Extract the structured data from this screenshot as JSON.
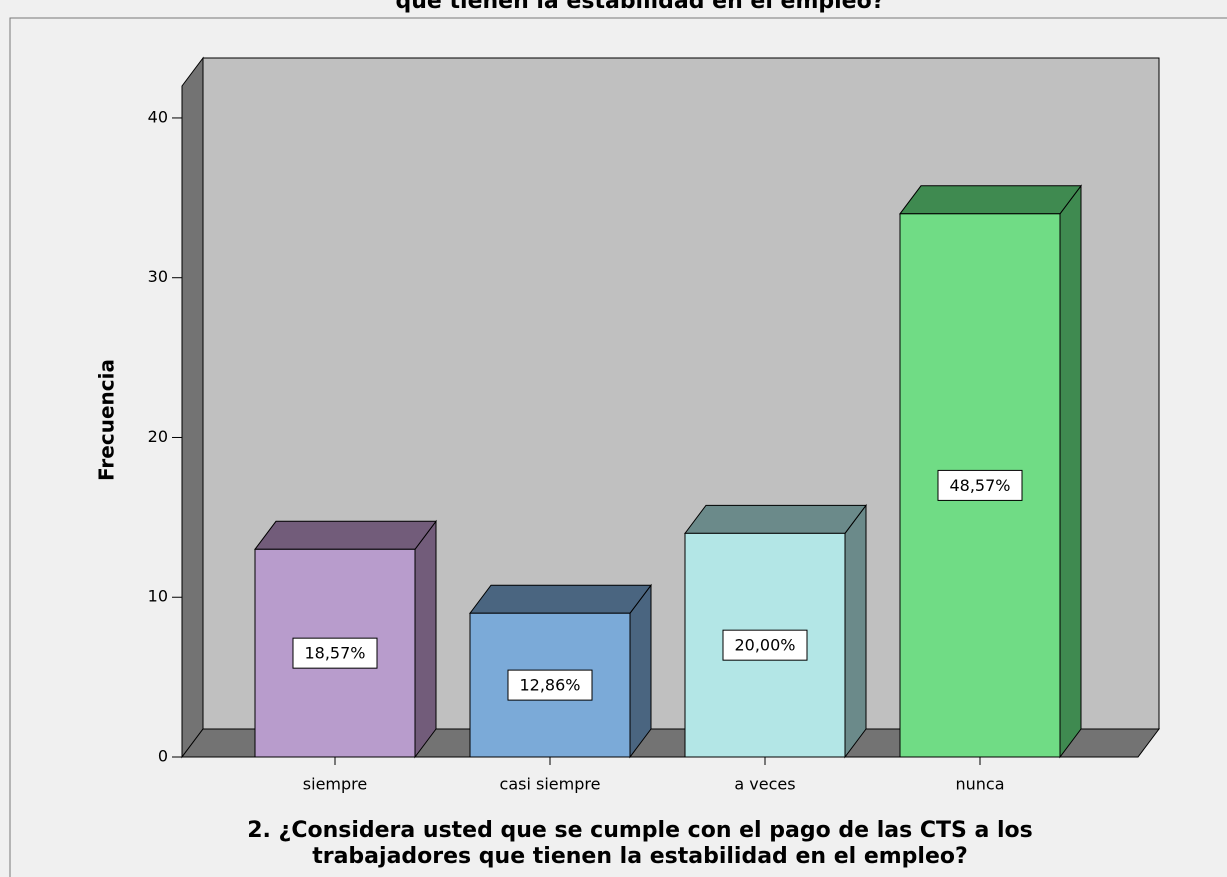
{
  "chart_data": {
    "type": "bar3d",
    "title": "que tienen la estabilidad en el empleo?",
    "ylabel": "Frecuencia",
    "xlabel": [
      "2. ¿Considera usted que se cumple con el pago de las CTS a los",
      "trabajadores que tienen la estabilidad en el empleo?"
    ],
    "categories": [
      "siempre",
      "casi siempre",
      "a veces",
      "nunca"
    ],
    "values": [
      13,
      9,
      14,
      34
    ],
    "percent_labels": [
      "18,57%",
      "12,86%",
      "20,00%",
      "48,57%"
    ],
    "colors": [
      "#b89ccc",
      "#7baad8",
      "#b3e6e6",
      "#70dc85"
    ],
    "side_colors": [
      "#725c7a",
      "#4a6580",
      "#6b8a8a",
      "#3f8a50"
    ],
    "ylim": [
      0,
      42
    ],
    "yticks": [
      0,
      10,
      20,
      30,
      40
    ]
  }
}
